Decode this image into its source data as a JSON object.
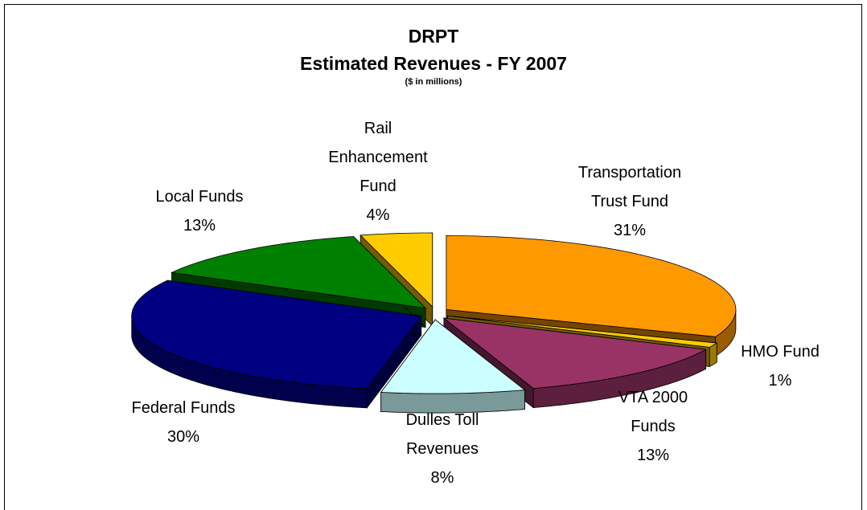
{
  "chart_data": {
    "type": "pie",
    "title": "DRPT\nEstimated Revenues - FY 2007",
    "subtitle": "($ in millions)",
    "categories": [
      "Transportation\nTrust Fund",
      "HMO Fund",
      "VTA 2000\nFunds",
      "Dulles Toll\nRevenues",
      "Federal Funds",
      "Local Funds",
      "Rail\nEnhancement\nFund"
    ],
    "values": [
      31,
      1,
      13,
      8,
      30,
      13,
      4
    ],
    "value_labels": [
      "31%",
      "1%",
      "13%",
      "8%",
      "30%",
      "13%",
      "4%"
    ],
    "colors": [
      "#ff9900",
      "#ffcc00",
      "#993366",
      "#ccffff",
      "#000080",
      "#008000",
      "#ffcc00"
    ]
  }
}
